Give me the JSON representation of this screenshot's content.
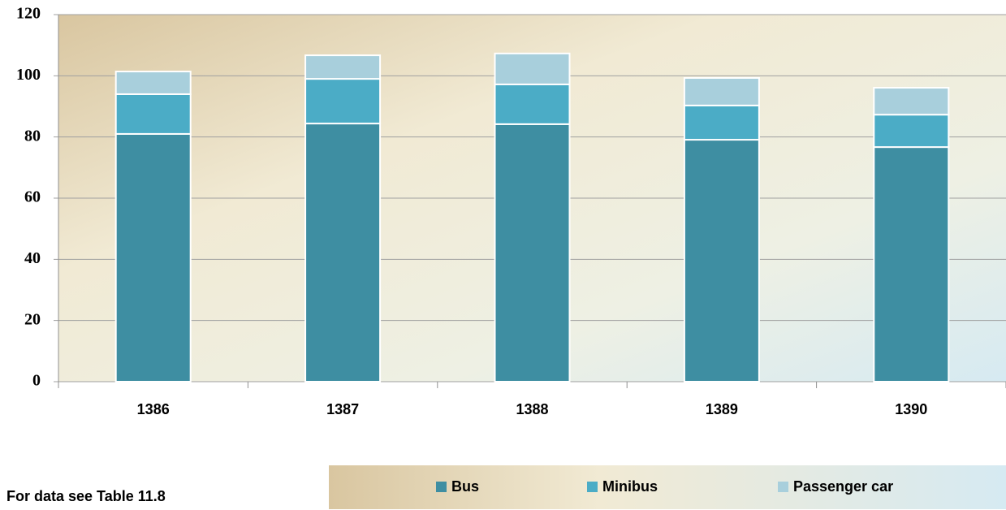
{
  "chart_data": {
    "type": "stacked_bar",
    "categories": [
      "1386",
      "1387",
      "1388",
      "1389",
      "1390"
    ],
    "series": [
      {
        "name": "Bus",
        "color": "#3e8ea2",
        "values": [
          81,
          84.4,
          84.2,
          79.1,
          76.7
        ]
      },
      {
        "name": "Minibus",
        "color": "#4bacc6",
        "values": [
          13,
          14.6,
          13,
          11.2,
          10.6
        ]
      },
      {
        "name": "Passenger car",
        "color": "#a8cfdc",
        "values": [
          7.4,
          7.7,
          10.1,
          9,
          8.8
        ]
      }
    ],
    "ylim": [
      0,
      120
    ],
    "yticks": [
      0,
      20,
      40,
      60,
      80,
      100,
      120
    ],
    "grid": true,
    "legend": "bottom"
  },
  "note": "For data see Table 11.8"
}
